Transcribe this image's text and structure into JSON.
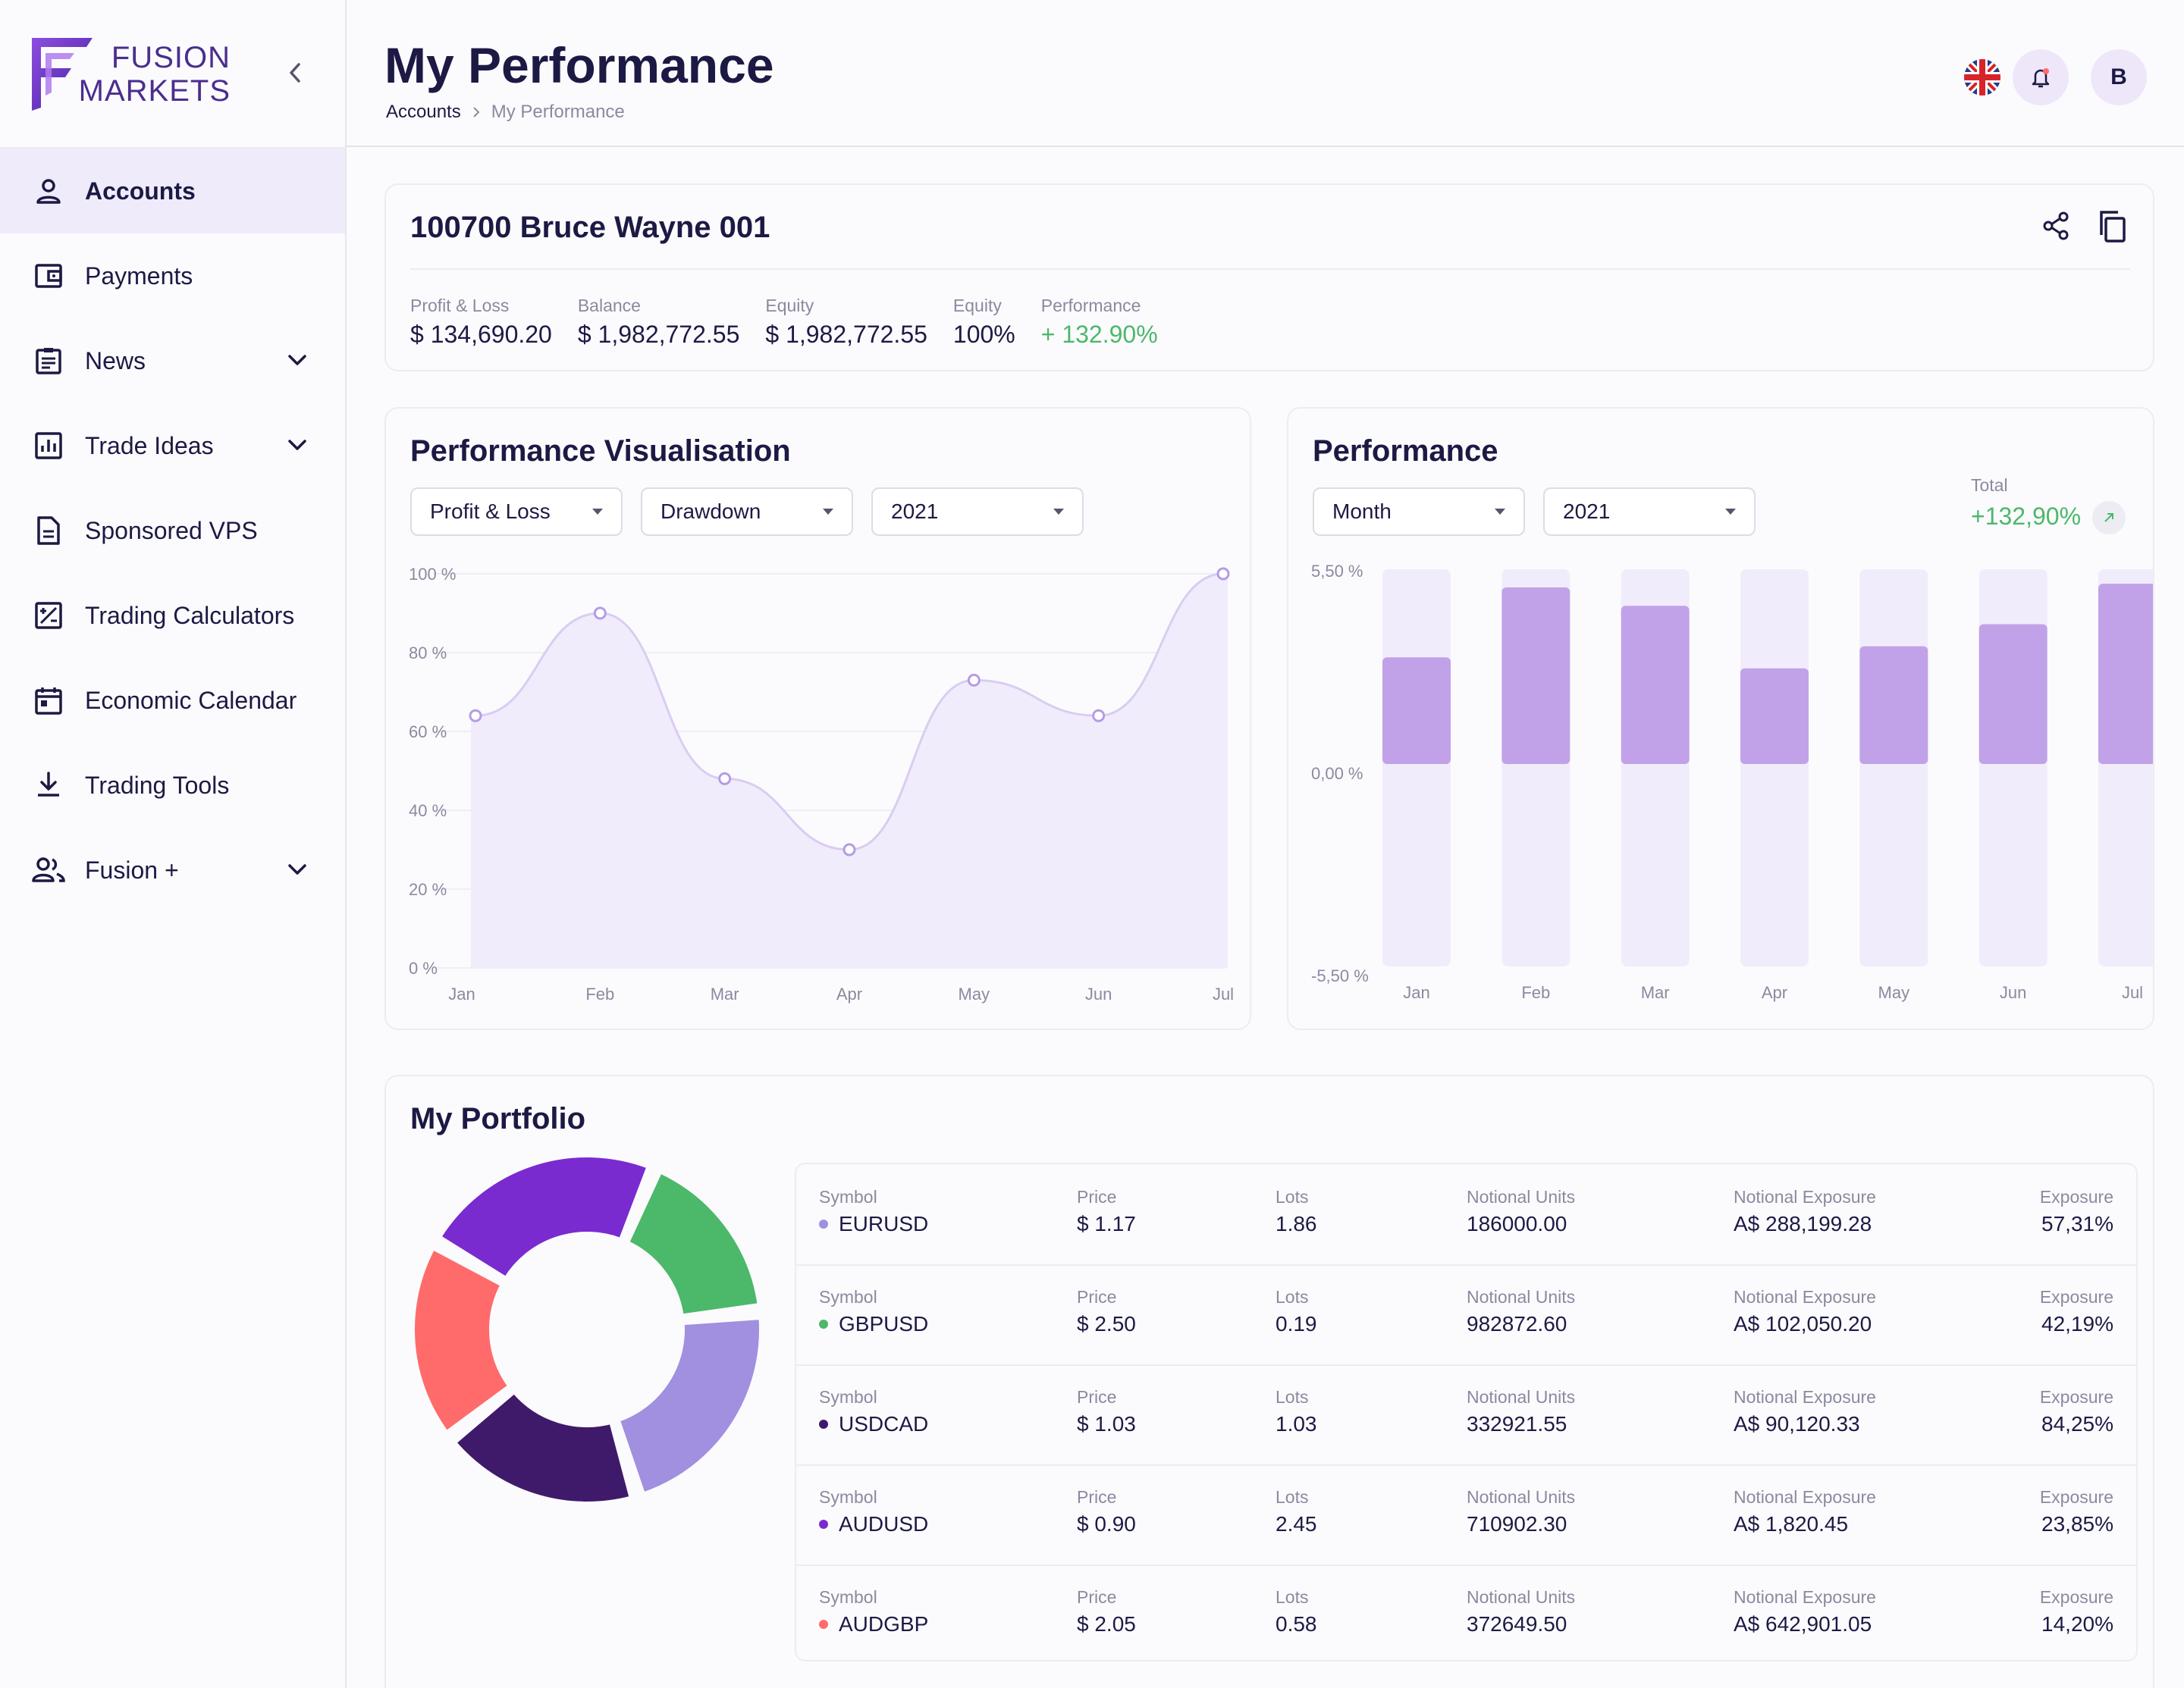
{
  "brand": {
    "line1": "FUSION",
    "line2": "MARKETS"
  },
  "sidebar": {
    "items": [
      {
        "label": "Accounts",
        "icon": "user-icon",
        "active": true,
        "expandable": false
      },
      {
        "label": "Payments",
        "icon": "wallet-icon",
        "active": false,
        "expandable": false
      },
      {
        "label": "News",
        "icon": "clipboard-icon",
        "active": false,
        "expandable": true
      },
      {
        "label": "Trade Ideas",
        "icon": "bar-chart-icon",
        "active": false,
        "expandable": true
      },
      {
        "label": "Sponsored VPS",
        "icon": "document-icon",
        "active": false,
        "expandable": false
      },
      {
        "label": "Trading Calculators",
        "icon": "calculator-icon",
        "active": false,
        "expandable": false
      },
      {
        "label": "Economic Calendar",
        "icon": "calendar-icon",
        "active": false,
        "expandable": false
      },
      {
        "label": "Trading Tools",
        "icon": "download-icon",
        "active": false,
        "expandable": false
      },
      {
        "label": "Fusion +",
        "icon": "users-icon",
        "active": false,
        "expandable": true
      }
    ]
  },
  "header": {
    "title": "My Performance",
    "breadcrumb": [
      "Accounts",
      "My Performance"
    ],
    "avatar_initial": "B"
  },
  "account": {
    "title": "100700 Bruce Wayne 001",
    "stats": [
      {
        "label": "Profit & Loss",
        "value": "$ 134,690.20",
        "positive": false
      },
      {
        "label": "Balance",
        "value": "$ 1,982,772.55",
        "positive": false
      },
      {
        "label": "Equity",
        "value": "$ 1,982,772.55",
        "positive": false
      },
      {
        "label": "Equity",
        "value": "100%",
        "positive": false
      },
      {
        "label": "Performance",
        "value": "+ 132.90%",
        "positive": true
      }
    ]
  },
  "visualisation": {
    "title": "Performance Visualisation",
    "filters": [
      "Profit & Loss",
      "Drawdown",
      "2021"
    ]
  },
  "performance": {
    "title": "Performance",
    "filters": [
      "Month",
      "2021"
    ],
    "total_label": "Total",
    "total_value": "+132,90%"
  },
  "colors": {
    "accent": "#5b2fc4",
    "positive": "#4cb86a",
    "area_fill": "#f1ecfb",
    "bar_bg": "#f1ecfb",
    "bar_fg": "#c1a2e8"
  },
  "chart_data": [
    {
      "type": "area",
      "title": "Performance Visualisation",
      "categories": [
        "Jan",
        "Feb",
        "Mar",
        "Apr",
        "May",
        "Jun",
        "Jul"
      ],
      "values": [
        64,
        90,
        48,
        30,
        73,
        64,
        100
      ],
      "yticks": [
        "0 %",
        "20 %",
        "40 %",
        "60 %",
        "80 %",
        "100 %"
      ],
      "ylim": [
        0,
        100
      ]
    },
    {
      "type": "bar",
      "title": "Performance",
      "categories": [
        "Jan",
        "Feb",
        "Mar",
        "Apr",
        "May",
        "Jun",
        "Jul"
      ],
      "values": [
        2.9,
        4.8,
        4.3,
        2.6,
        3.2,
        3.8,
        4.9
      ],
      "yticks": [
        "-5,50 %",
        "0,00 %",
        "5,50 %"
      ],
      "ylim": [
        -5.5,
        5.5
      ]
    },
    {
      "type": "pie",
      "title": "My Portfolio",
      "labels": [
        "EURUSD",
        "GBPUSD",
        "USDCAD",
        "AUDUSD",
        "AUDGBP"
      ],
      "values": [
        22,
        17,
        19,
        23,
        19
      ]
    }
  ],
  "portfolio": {
    "title": "My Portfolio",
    "headers": {
      "symbol": "Symbol",
      "price": "Price",
      "lots": "Lots",
      "notional_units": "Notional Units",
      "notional_exposure": "Notional Exposure",
      "exposure": "Exposure"
    },
    "rows": [
      {
        "symbol": "EURUSD",
        "color": "#a18fe0",
        "price": "$ 1.17",
        "lots": "1.86",
        "notional_units": "186000.00",
        "notional_exposure": "A$ 288,199.28",
        "exposure": "57,31%"
      },
      {
        "symbol": "GBPUSD",
        "color": "#4cb86a",
        "price": "$ 2.50",
        "lots": "0.19",
        "notional_units": "982872.60",
        "notional_exposure": "A$ 102,050.20",
        "exposure": "42,19%"
      },
      {
        "symbol": "USDCAD",
        "color": "#3f1a6b",
        "price": "$ 1.03",
        "lots": "1.03",
        "notional_units": "332921.55",
        "notional_exposure": "A$ 90,120.33",
        "exposure": "84,25%"
      },
      {
        "symbol": "AUDUSD",
        "color": "#7a2bd0",
        "price": "$ 0.90",
        "lots": "2.45",
        "notional_units": "710902.30",
        "notional_exposure": "A$ 1,820.45",
        "exposure": "23,85%"
      },
      {
        "symbol": "AUDGBP",
        "color": "#ff6b6b",
        "price": "$ 2.05",
        "lots": "0.58",
        "notional_units": "372649.50",
        "notional_exposure": "A$ 642,901.05",
        "exposure": "14,20%"
      }
    ]
  }
}
